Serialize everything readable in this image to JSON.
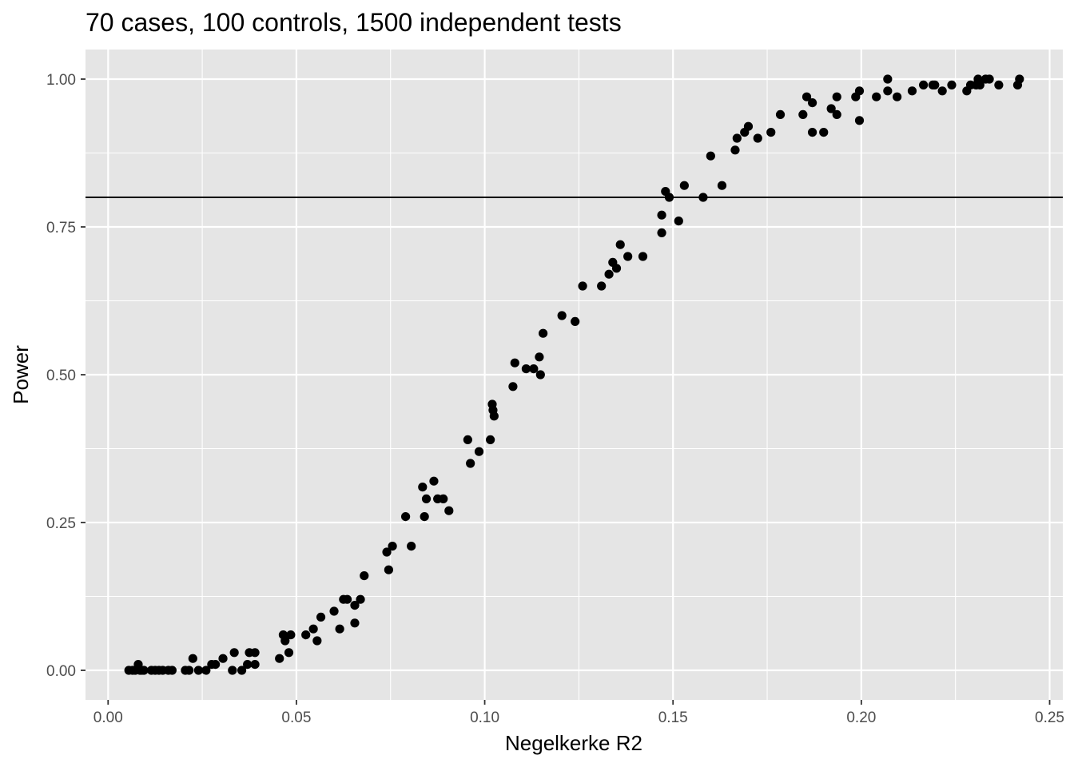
{
  "chart_data": {
    "type": "scatter",
    "title": "70 cases, 100 controls, 1500 independent tests",
    "xlabel": "Negelkerke R2",
    "ylabel": "Power",
    "xlim": [
      -0.006,
      0.2535
    ],
    "ylim": [
      -0.05,
      1.05
    ],
    "x_ticks": [
      0.0,
      0.05,
      0.1,
      0.15,
      0.2,
      0.25
    ],
    "x_tick_labels": [
      "0.00",
      "0.05",
      "0.10",
      "0.15",
      "0.20",
      "0.25"
    ],
    "y_ticks": [
      0.0,
      0.25,
      0.5,
      0.75,
      1.0
    ],
    "y_tick_labels": [
      "0.00",
      "0.25",
      "0.50",
      "0.75",
      "1.00"
    ],
    "grid": true,
    "panel_background": "#e5e5e5",
    "grid_color": "#ffffff",
    "point_color": "#000000",
    "reference_line": {
      "y": 0.8,
      "color": "#000000"
    },
    "points": [
      [
        0.0055,
        0.0
      ],
      [
        0.0065,
        0.0
      ],
      [
        0.0072,
        0.0
      ],
      [
        0.008,
        0.01
      ],
      [
        0.0085,
        0.0
      ],
      [
        0.009,
        0.0
      ],
      [
        0.0095,
        0.0
      ],
      [
        0.0115,
        0.0
      ],
      [
        0.0125,
        0.0
      ],
      [
        0.0135,
        0.0
      ],
      [
        0.0145,
        0.0
      ],
      [
        0.016,
        0.0
      ],
      [
        0.017,
        0.0
      ],
      [
        0.0205,
        0.0
      ],
      [
        0.0215,
        0.0
      ],
      [
        0.0225,
        0.02
      ],
      [
        0.024,
        0.0
      ],
      [
        0.026,
        0.0
      ],
      [
        0.0275,
        0.01
      ],
      [
        0.0285,
        0.01
      ],
      [
        0.0305,
        0.02
      ],
      [
        0.0335,
        0.03
      ],
      [
        0.033,
        0.0
      ],
      [
        0.0355,
        0.0
      ],
      [
        0.037,
        0.01
      ],
      [
        0.0375,
        0.03
      ],
      [
        0.039,
        0.03
      ],
      [
        0.039,
        0.01
      ],
      [
        0.0455,
        0.02
      ],
      [
        0.0465,
        0.06
      ],
      [
        0.047,
        0.05
      ],
      [
        0.048,
        0.03
      ],
      [
        0.0485,
        0.06
      ],
      [
        0.0525,
        0.06
      ],
      [
        0.0545,
        0.07
      ],
      [
        0.0555,
        0.05
      ],
      [
        0.0565,
        0.09
      ],
      [
        0.06,
        0.1
      ],
      [
        0.0615,
        0.07
      ],
      [
        0.0625,
        0.12
      ],
      [
        0.0635,
        0.12
      ],
      [
        0.0655,
        0.11
      ],
      [
        0.0655,
        0.08
      ],
      [
        0.067,
        0.12
      ],
      [
        0.068,
        0.16
      ],
      [
        0.074,
        0.2
      ],
      [
        0.0745,
        0.17
      ],
      [
        0.0755,
        0.21
      ],
      [
        0.079,
        0.26
      ],
      [
        0.0805,
        0.21
      ],
      [
        0.0835,
        0.31
      ],
      [
        0.084,
        0.26
      ],
      [
        0.0845,
        0.29
      ],
      [
        0.0865,
        0.32
      ],
      [
        0.0875,
        0.29
      ],
      [
        0.089,
        0.29
      ],
      [
        0.0905,
        0.27
      ],
      [
        0.0955,
        0.39
      ],
      [
        0.0962,
        0.35
      ],
      [
        0.0985,
        0.37
      ],
      [
        0.1015,
        0.39
      ],
      [
        0.102,
        0.45
      ],
      [
        0.1022,
        0.44
      ],
      [
        0.1025,
        0.43
      ],
      [
        0.1075,
        0.48
      ],
      [
        0.108,
        0.52
      ],
      [
        0.111,
        0.51
      ],
      [
        0.113,
        0.51
      ],
      [
        0.1145,
        0.53
      ],
      [
        0.1148,
        0.5
      ],
      [
        0.1155,
        0.57
      ],
      [
        0.1205,
        0.6
      ],
      [
        0.124,
        0.59
      ],
      [
        0.126,
        0.65
      ],
      [
        0.131,
        0.65
      ],
      [
        0.133,
        0.67
      ],
      [
        0.134,
        0.69
      ],
      [
        0.135,
        0.68
      ],
      [
        0.136,
        0.72
      ],
      [
        0.138,
        0.7
      ],
      [
        0.142,
        0.7
      ],
      [
        0.147,
        0.74
      ],
      [
        0.147,
        0.77
      ],
      [
        0.148,
        0.81
      ],
      [
        0.149,
        0.8
      ],
      [
        0.1515,
        0.76
      ],
      [
        0.153,
        0.82
      ],
      [
        0.158,
        0.8
      ],
      [
        0.16,
        0.87
      ],
      [
        0.163,
        0.82
      ],
      [
        0.1665,
        0.88
      ],
      [
        0.167,
        0.9
      ],
      [
        0.169,
        0.91
      ],
      [
        0.17,
        0.92
      ],
      [
        0.1725,
        0.9
      ],
      [
        0.176,
        0.91
      ],
      [
        0.1785,
        0.94
      ],
      [
        0.1845,
        0.94
      ],
      [
        0.1855,
        0.97
      ],
      [
        0.187,
        0.96
      ],
      [
        0.187,
        0.91
      ],
      [
        0.19,
        0.91
      ],
      [
        0.192,
        0.95
      ],
      [
        0.1935,
        0.97
      ],
      [
        0.1935,
        0.94
      ],
      [
        0.1985,
        0.97
      ],
      [
        0.1995,
        0.98
      ],
      [
        0.1995,
        0.93
      ],
      [
        0.204,
        0.97
      ],
      [
        0.207,
        1.0
      ],
      [
        0.207,
        0.98
      ],
      [
        0.2095,
        0.97
      ],
      [
        0.2135,
        0.98
      ],
      [
        0.2165,
        0.99
      ],
      [
        0.219,
        0.99
      ],
      [
        0.2195,
        0.99
      ],
      [
        0.2215,
        0.98
      ],
      [
        0.224,
        0.99
      ],
      [
        0.228,
        0.98
      ],
      [
        0.229,
        0.99
      ],
      [
        0.2305,
        0.99
      ],
      [
        0.231,
        1.0
      ],
      [
        0.2315,
        0.99
      ],
      [
        0.233,
        1.0
      ],
      [
        0.234,
        1.0
      ],
      [
        0.2365,
        0.99
      ],
      [
        0.2415,
        0.99
      ],
      [
        0.242,
        1.0
      ]
    ]
  }
}
